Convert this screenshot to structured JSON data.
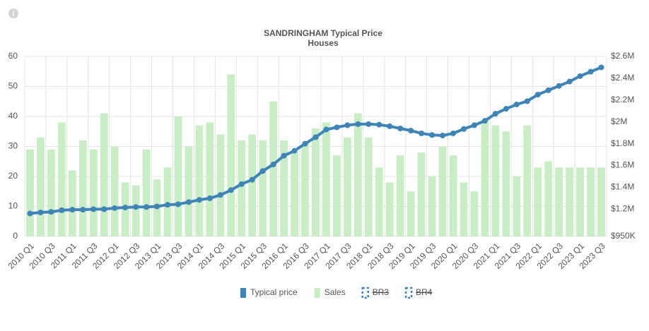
{
  "chart_data": {
    "type": "bar-line",
    "title": "SANDRINGHAM Typical Price",
    "subtitle": "Houses",
    "categories": [
      "2010 Q1",
      null,
      "2010 Q3",
      null,
      "2011 Q1",
      null,
      "2011 Q3",
      null,
      "2012 Q1",
      null,
      "2012 Q3",
      null,
      "2013 Q1",
      null,
      "2013 Q3",
      null,
      "2014 Q1",
      null,
      "2014 Q3",
      null,
      "2015 Q1",
      null,
      "2015 Q3",
      null,
      "2016 Q1",
      null,
      "2016 Q3",
      null,
      "2017 Q1",
      null,
      "2017 Q3",
      null,
      "2018 Q1",
      null,
      "2018 Q3",
      null,
      "2019 Q1",
      null,
      "2019 Q3",
      null,
      "2020 Q1",
      null,
      "2020 Q3",
      null,
      "2021 Q1",
      null,
      "2021 Q3",
      null,
      "2022 Q1",
      null,
      "2022 Q3",
      null,
      "2023 Q1",
      null,
      "2023 Q3"
    ],
    "series": [
      {
        "name": "Typical price",
        "color": "#3d85b8",
        "kind": "line",
        "axis": "y2",
        "values": [
          1160000,
          1170000,
          1175000,
          1190000,
          1195000,
          1195000,
          1200000,
          1200000,
          1210000,
          1215000,
          1220000,
          1220000,
          1225000,
          1240000,
          1245000,
          1265000,
          1285000,
          1300000,
          1330000,
          1375000,
          1430000,
          1470000,
          1550000,
          1610000,
          1690000,
          1735000,
          1800000,
          1860000,
          1930000,
          1950000,
          1970000,
          1980000,
          1980000,
          1975000,
          1960000,
          1940000,
          1920000,
          1895000,
          1880000,
          1875000,
          1895000,
          1935000,
          1970000,
          2010000,
          2075000,
          2120000,
          2160000,
          2190000,
          2250000,
          2290000,
          2330000,
          2370000,
          2420000,
          2460000,
          2500000
        ]
      },
      {
        "name": "Sales",
        "color": "#c9edc4",
        "kind": "bar",
        "values": [
          29,
          33,
          29,
          38,
          22,
          32,
          29,
          41,
          30,
          18,
          17,
          29,
          19,
          23,
          40,
          30,
          37,
          38,
          34,
          54,
          32,
          34,
          32,
          45,
          32,
          28,
          31,
          36,
          38,
          27,
          33,
          41,
          33,
          23,
          18,
          27,
          15,
          28,
          20,
          30,
          27,
          18,
          15,
          39,
          37,
          35,
          20,
          37,
          23,
          25,
          23,
          23,
          23,
          23,
          23
        ]
      }
    ],
    "hidden_series": [
      {
        "name": "BR3",
        "color": "#3d85b8"
      },
      {
        "name": "BR4",
        "color": "#3d85b8"
      }
    ],
    "ylim": [
      0,
      60
    ],
    "yticks": [
      0,
      10,
      20,
      30,
      40,
      50,
      60
    ],
    "y2lim": [
      950000,
      2600000
    ],
    "y2ticks": [
      {
        "value": 950000,
        "label": "$950K"
      },
      {
        "value": 1200000,
        "label": "$1.2M"
      },
      {
        "value": 1400000,
        "label": "$1.4M"
      },
      {
        "value": 1600000,
        "label": "$1.6M"
      },
      {
        "value": 1800000,
        "label": "$1.8M"
      },
      {
        "value": 2000000,
        "label": "$2M"
      },
      {
        "value": 2200000,
        "label": "$2.2M"
      },
      {
        "value": 2400000,
        "label": "$2.4M"
      },
      {
        "value": 2600000,
        "label": "$2.6M"
      }
    ],
    "grid": true
  }
}
